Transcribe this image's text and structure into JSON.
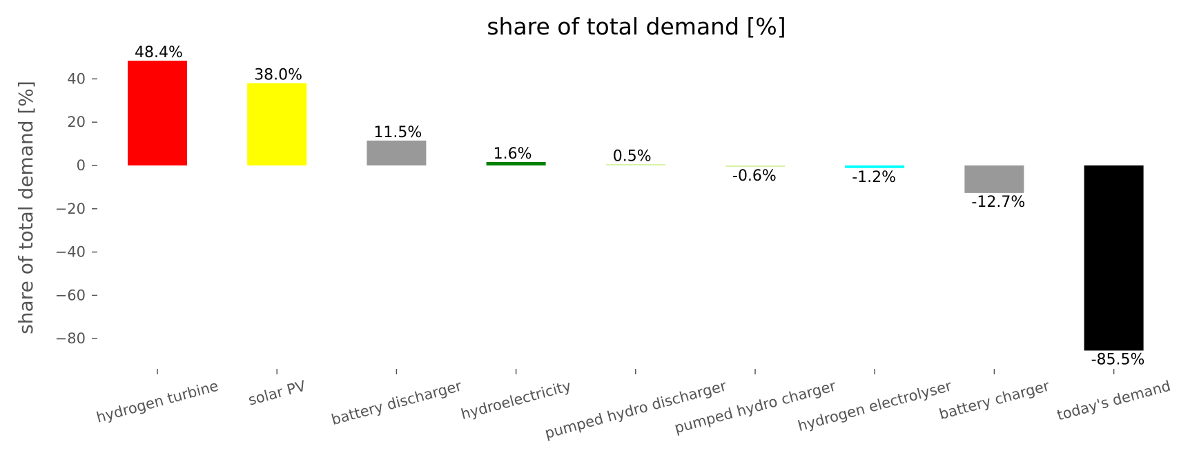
{
  "chart_data": {
    "type": "bar",
    "title": "share of total demand [%]",
    "xlabel": "",
    "ylabel": "share of total demand [%]",
    "ylim": [
      -94,
      54
    ],
    "yticks": [
      40,
      20,
      0,
      -20,
      -40,
      -60,
      -80
    ],
    "grid": false,
    "categories": [
      "hydrogen turbine",
      "solar PV",
      "battery discharger",
      "hydroelectricity",
      "pumped hydro discharger",
      "pumped hydro charger",
      "hydrogen electrolyser",
      "battery charger",
      "today's demand"
    ],
    "values": [
      48.4,
      38.0,
      11.5,
      1.6,
      0.5,
      -0.6,
      -1.2,
      -12.7,
      -85.5
    ],
    "labels": [
      "48.4%",
      "38.0%",
      "11.5%",
      "1.6%",
      "0.5%",
      "-0.6%",
      "-1.2%",
      "-12.7%",
      "-85.5%"
    ],
    "colors": [
      "#ff0000",
      "#ffff00",
      "#999999",
      "#008000",
      "#d9f2a6",
      "#d9f2a6",
      "#00ffff",
      "#999999",
      "#000000"
    ]
  }
}
